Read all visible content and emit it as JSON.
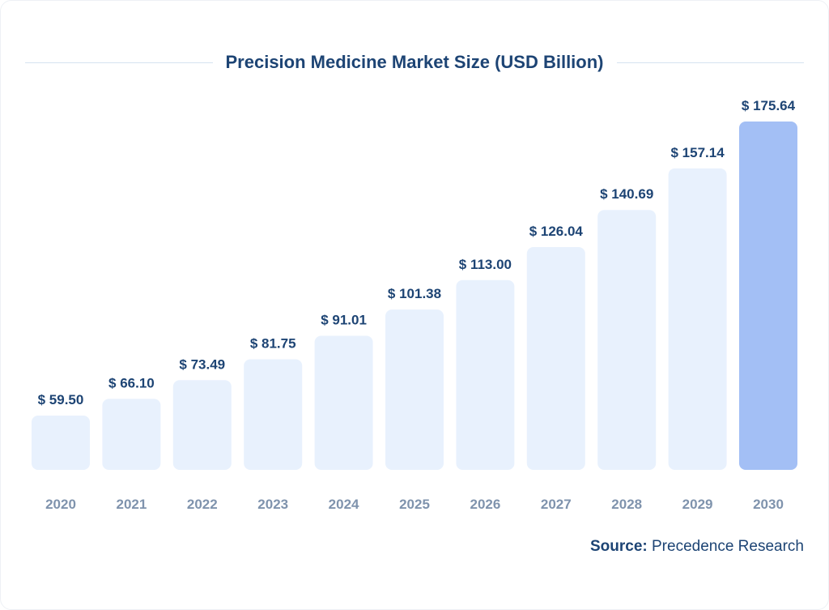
{
  "chart_data": {
    "type": "bar",
    "title": "Precision Medicine Market Size (USD Billion)",
    "categories": [
      "2020",
      "2021",
      "2022",
      "2023",
      "2024",
      "2025",
      "2026",
      "2027",
      "2028",
      "2029",
      "2030"
    ],
    "values": [
      59.5,
      66.1,
      73.49,
      81.75,
      91.01,
      101.38,
      113.0,
      126.04,
      140.69,
      157.14,
      175.64
    ],
    "data_labels": [
      "$ 59.50",
      "$ 66.10",
      "$ 73.49",
      "$ 81.75",
      "$ 91.01",
      "$ 101.38",
      "$ 113.00",
      "$ 126.04",
      "$ 140.69",
      "$ 157.14",
      "$ 175.64"
    ],
    "xlabel": "",
    "ylabel": "",
    "grid": false,
    "colors": {
      "bar": "#e8f1fd",
      "highlight": "#a3bff5",
      "label": "#1d4474",
      "tick": "#7f93ad"
    },
    "highlight_category": "2030"
  },
  "source": {
    "label": "Source:",
    "value": "Precedence Research"
  }
}
